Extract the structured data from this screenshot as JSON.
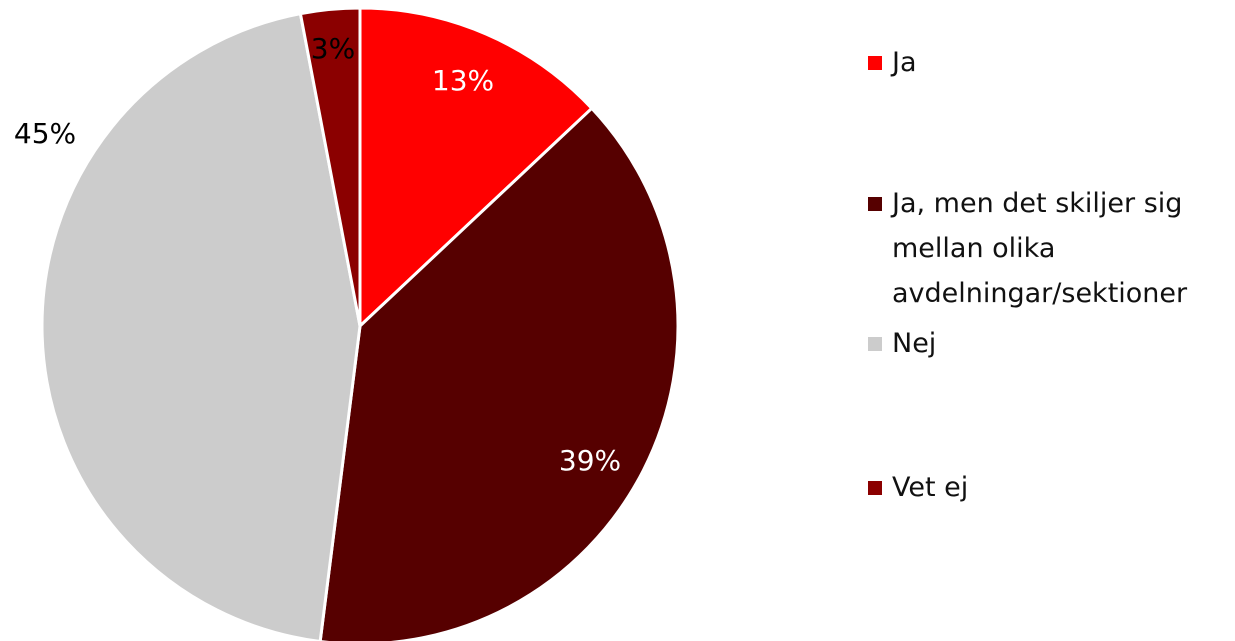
{
  "chart_data": {
    "type": "pie",
    "categories": [
      "Ja",
      "Ja, men det skiljer sig mellan olika avdelningar/sektioner",
      "Nej",
      "Vet ej"
    ],
    "values": [
      13,
      39,
      45,
      3
    ],
    "value_labels": [
      "13%",
      "39%",
      "45%",
      "3%"
    ],
    "colors": [
      "#ff0000",
      "#560000",
      "#cccccc",
      "#8b0000"
    ],
    "legend": "right"
  }
}
